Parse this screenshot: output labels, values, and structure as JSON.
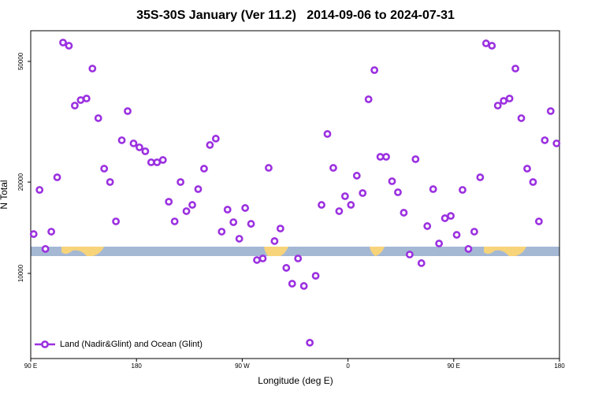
{
  "chart_data": {
    "type": "scatter",
    "title": "35S-30S January (Ver 11.2)   2014-09-06 to 2024-07-31",
    "x_label": "Longitude (deg E)",
    "y_label": "N Total",
    "y_log": true,
    "legend": "lower left",
    "xlim": [
      90,
      540
    ],
    "xticks": [
      {
        "value": 90,
        "label": "90 E"
      },
      180,
      {
        "value": 270,
        "label": "90 W"
      },
      {
        "value": 360,
        "label": "0"
      },
      {
        "value": 450,
        "label": "90 E"
      },
      {
        "value": 540,
        "label": "180"
      }
    ],
    "ylim": [
      5240,
      63100
    ],
    "yticks": [
      10000,
      20000,
      50000
    ],
    "series": [
      {
        "name": "Land (Nadir&Glint) and Ocean (Glint)",
        "color": "#9b30e0",
        "x": [
          92.5,
          97.5,
          102.5,
          107.5,
          112.5,
          117.5,
          122.5,
          127.5,
          132.5,
          137.5,
          142.5,
          147.5,
          152.5,
          157.5,
          162.5,
          167.5,
          172.5,
          177.5,
          182.5,
          187.5,
          192.5,
          197.5,
          202.5,
          207.5,
          212.5,
          217.5,
          222.5,
          227.5,
          232.5,
          237.5,
          242.5,
          247.5,
          252.5,
          257.5,
          262.5,
          267.5,
          272.5,
          277.5,
          282.5,
          287.5,
          292.5,
          297.5,
          302.5,
          307.5,
          312.5,
          317.5,
          322.5,
          327.5,
          332.5,
          337.5,
          342.5,
          347.5,
          352.5,
          357.5,
          362.5,
          367.5,
          372.5,
          377.5,
          382.5,
          387.5,
          392.5,
          397.5,
          402.5,
          407.5,
          412.5,
          417.5,
          422.5,
          427.5,
          432.5,
          437.5,
          442.5,
          447.5,
          452.5,
          457.5,
          462.5,
          467.5,
          472.5,
          477.5,
          482.5,
          487.5,
          492.5,
          497.5,
          502.5,
          507.5,
          512.5,
          517.5,
          522.5,
          527.5,
          532.5,
          537.5
        ],
        "values": [
          13480,
          18850,
          12040,
          13730,
          20740,
          57680,
          56310,
          35750,
          37270,
          37720,
          47350,
          32490,
          22150,
          20010,
          14840,
          27480,
          34280,
          26830,
          26040,
          25270,
          23240,
          23240,
          23660,
          17230,
          14840,
          20010,
          16040,
          16820,
          18960,
          22150,
          26510,
          27820,
          13730,
          16230,
          14750,
          13010,
          16430,
          14570,
          11070,
          11200,
          22280,
          12780,
          14060,
          10430,
          9250,
          11200,
          9090,
          5910,
          9820,
          16820,
          28820,
          22280,
          16040,
          17970,
          16820,
          21000,
          18400,
          37500,
          46790,
          24230,
          24230,
          20130,
          18510,
          15850,
          11540,
          23800,
          10810,
          14320,
          18960,
          12550,
          15200,
          15470,
          13400,
          18850,
          12040,
          13730,
          20740,
          57330,
          56310,
          35750,
          37050,
          37720,
          47350,
          32490,
          22150,
          20010,
          14840,
          27480,
          34280,
          26830
        ]
      }
    ]
  }
}
